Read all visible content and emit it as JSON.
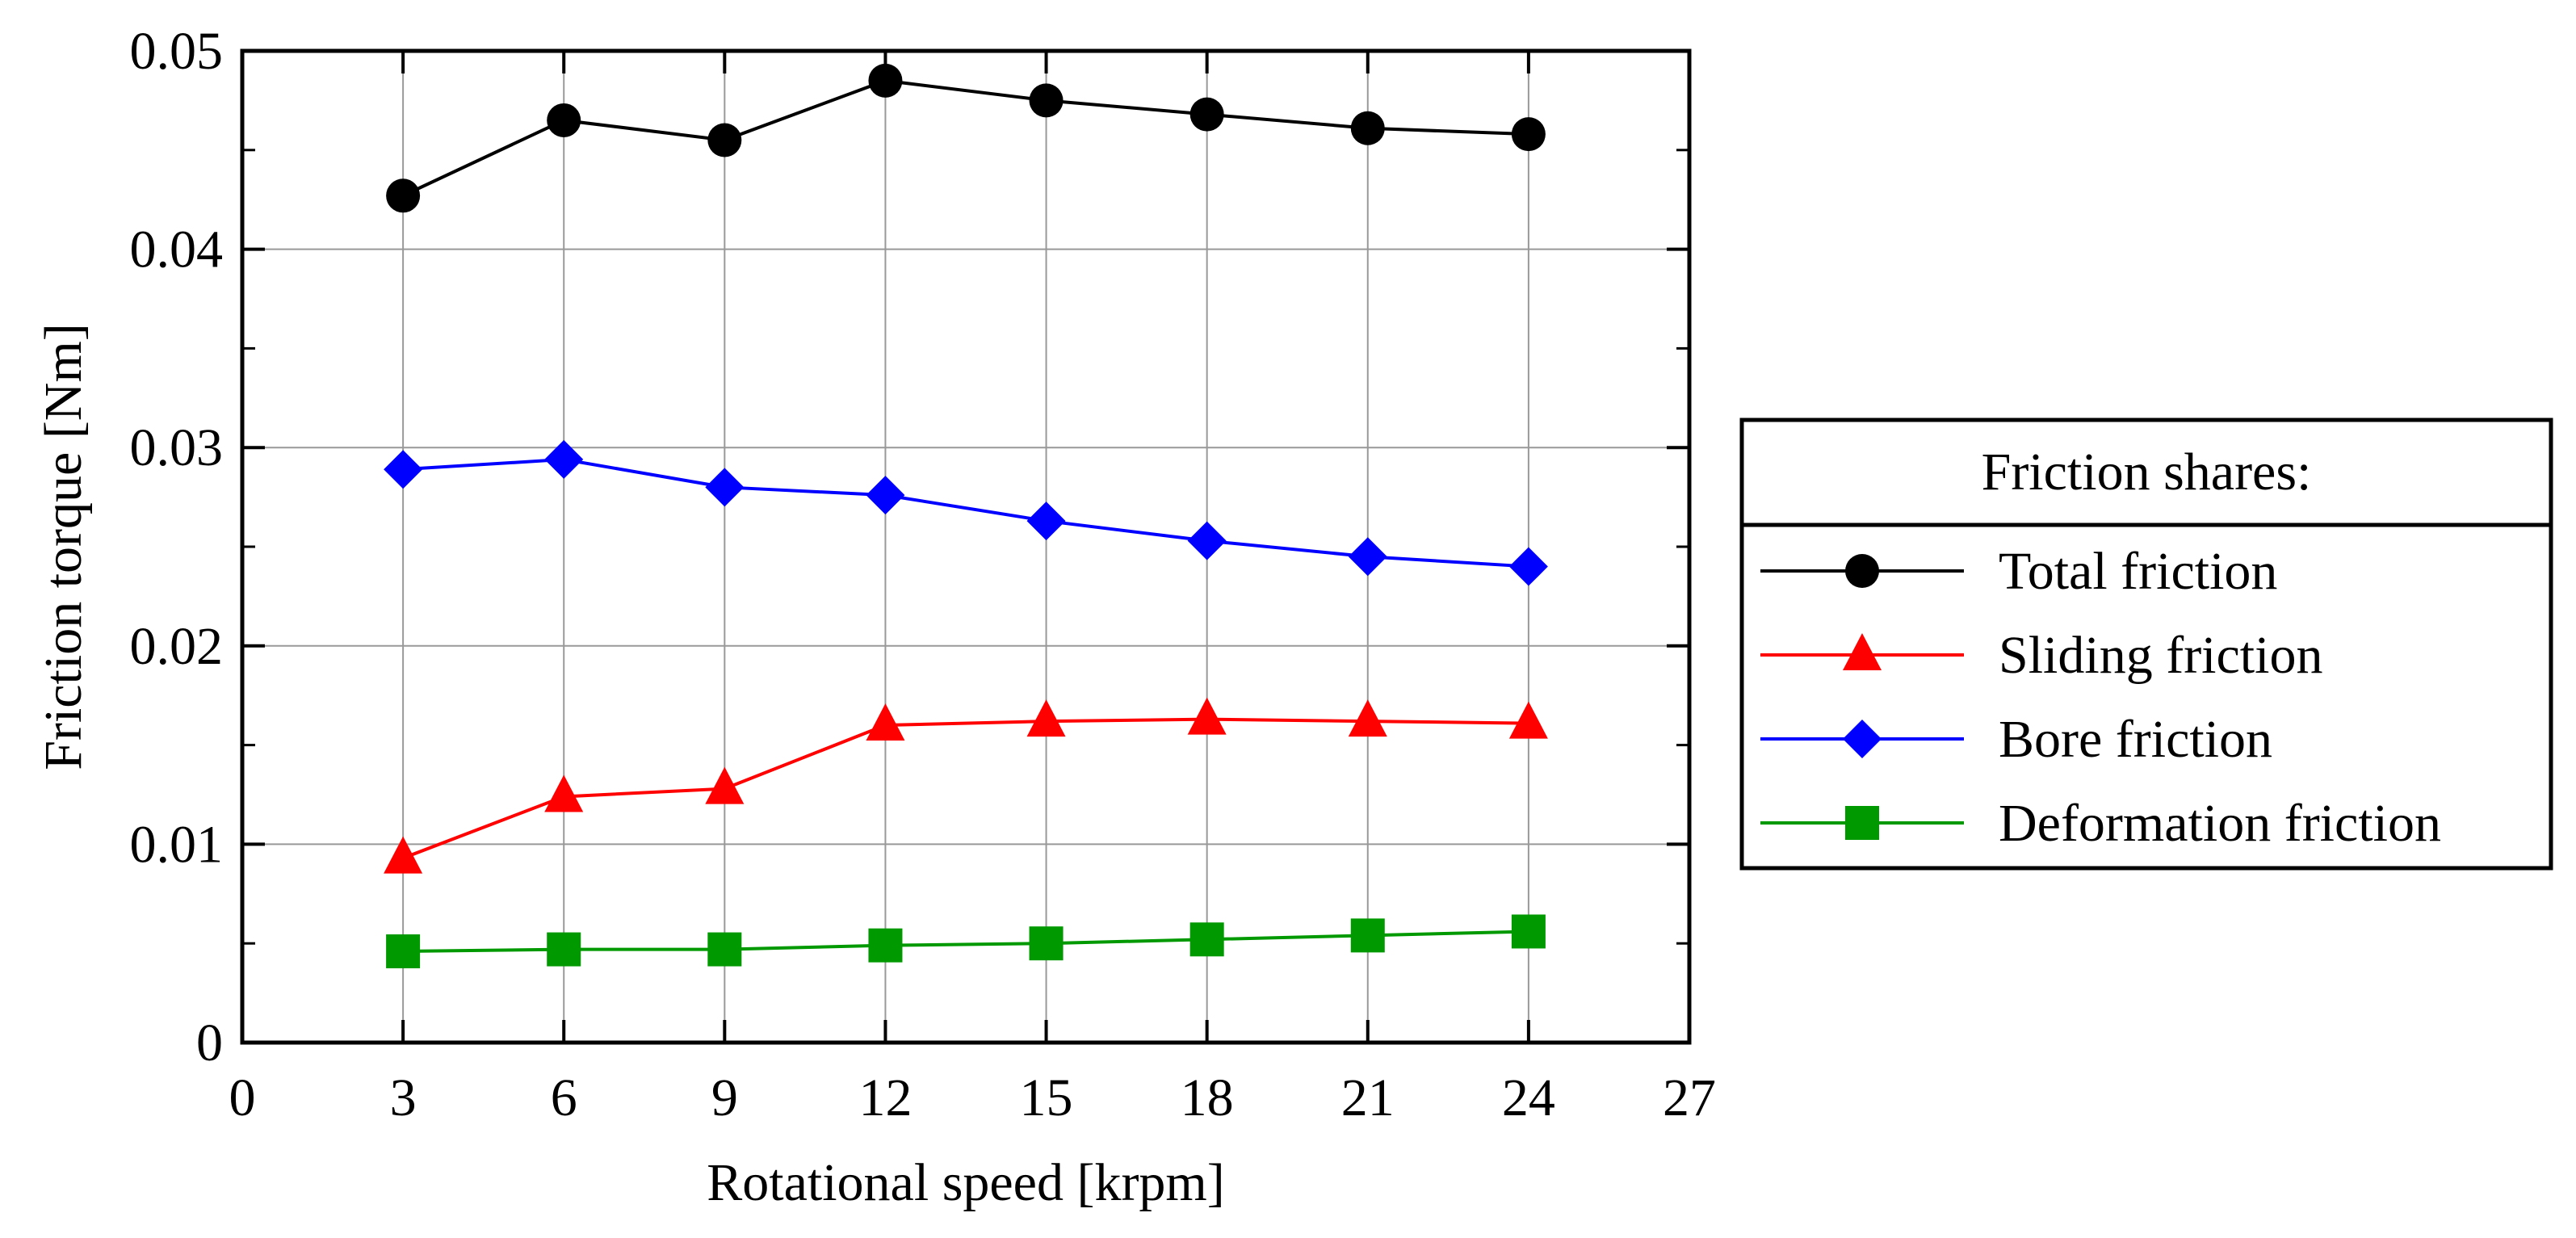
{
  "chart_data": {
    "type": "line",
    "title": "",
    "xlabel": "Rotational speed [krpm]",
    "ylabel": "Friction torque [Nm]",
    "xlim": [
      0,
      27
    ],
    "ylim": [
      0,
      0.05
    ],
    "xticks": [
      0,
      3,
      6,
      9,
      12,
      15,
      18,
      21,
      24,
      27
    ],
    "xtick_labels": [
      "0",
      "3",
      "6",
      "9",
      "12",
      "15",
      "18",
      "21",
      "24",
      "27"
    ],
    "yticks": [
      0,
      0.01,
      0.02,
      0.03,
      0.04,
      0.05
    ],
    "ytick_labels": [
      "0",
      "0.01",
      "0.02",
      "0.03",
      "0.04",
      "0.05"
    ],
    "grid": true,
    "legend": {
      "title": "Friction shares:",
      "placement": "right",
      "entries": [
        "Total friction",
        "Sliding friction",
        "Bore friction",
        "Deformation friction"
      ]
    },
    "x": [
      3,
      6,
      9,
      12,
      15,
      18,
      21,
      24
    ],
    "series": [
      {
        "name": "Total friction",
        "color": "#000000",
        "marker": "circle",
        "values": [
          0.0427,
          0.0465,
          0.0455,
          0.0485,
          0.0475,
          0.0468,
          0.0461,
          0.0458
        ]
      },
      {
        "name": "Sliding friction",
        "color": "#ff0000",
        "marker": "triangle",
        "values": [
          0.0093,
          0.0124,
          0.0128,
          0.016,
          0.0162,
          0.0163,
          0.0162,
          0.0161
        ]
      },
      {
        "name": "Bore friction",
        "color": "#0000ff",
        "marker": "diamond",
        "values": [
          0.0289,
          0.0294,
          0.028,
          0.0276,
          0.0263,
          0.0253,
          0.0245,
          0.024
        ]
      },
      {
        "name": "Deformation friction",
        "color": "#009900",
        "marker": "square",
        "values": [
          0.0046,
          0.0047,
          0.0047,
          0.0049,
          0.005,
          0.0052,
          0.0054,
          0.0056
        ]
      }
    ]
  }
}
